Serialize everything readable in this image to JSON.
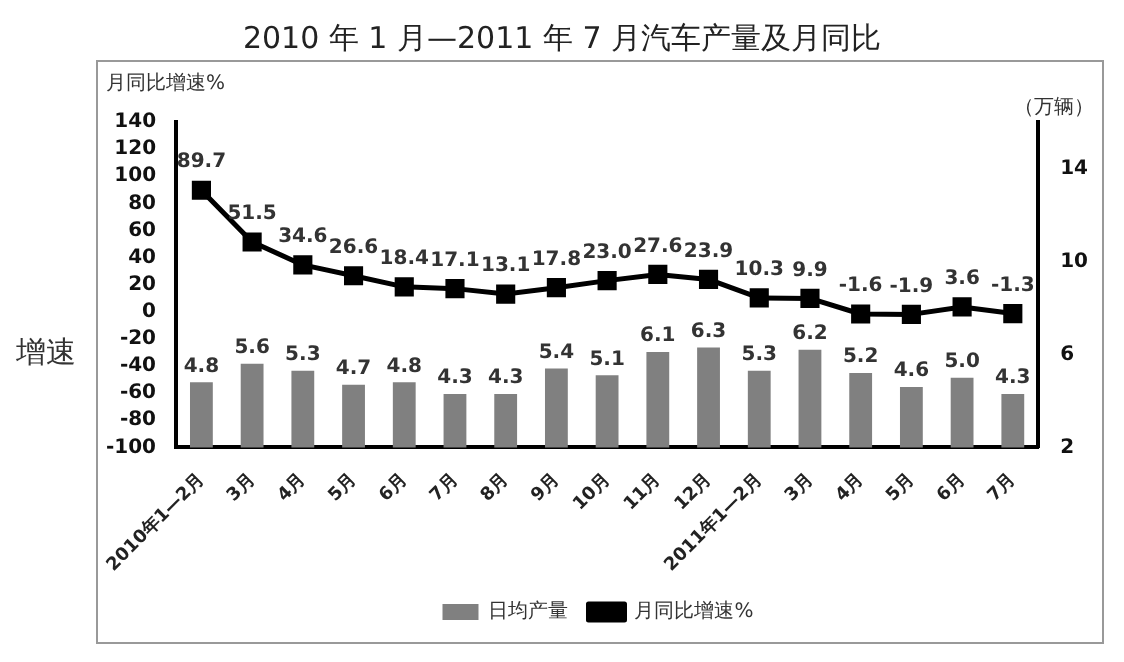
{
  "chart_data": {
    "type": "bar",
    "title": "2010 年 1 月—2011 年 7 月汽车产量及月同比",
    "ylabel": "月同比增速%",
    "y2label": "（万辆）",
    "annotations": [
      "增速"
    ],
    "categories": [
      "2010年1—2月",
      "3月",
      "4月",
      "5月",
      "6月",
      "7月",
      "8月",
      "9月",
      "10月",
      "11月",
      "12月",
      "2011年1—2月",
      "3月",
      "4月",
      "5月",
      "6月",
      "7月"
    ],
    "series": [
      {
        "name": "日均产量",
        "axis": "y2",
        "color": "#808080",
        "values": [
          4.8,
          5.6,
          5.3,
          4.7,
          4.8,
          4.3,
          4.3,
          5.4,
          5.1,
          6.1,
          6.3,
          5.3,
          6.2,
          5.2,
          4.6,
          5.0,
          4.3
        ],
        "value_labels": [
          "4.8",
          "5.6",
          "5.3",
          "4.7",
          "4.8",
          "4.3",
          "4.3",
          "5.4",
          "5.1",
          "6.1",
          "6.3",
          "5.3",
          "6.2",
          "5.2",
          "4.6",
          "5.0",
          "4.3"
        ]
      },
      {
        "name": "月同比增速%",
        "type": "line",
        "axis": "y",
        "color": "#000000",
        "marker": "square",
        "values": [
          89.7,
          51.5,
          34.6,
          26.6,
          18.4,
          17.1,
          13.1,
          17.8,
          23.0,
          27.6,
          23.9,
          10.3,
          9.9,
          -1.6,
          -1.9,
          3.6,
          -1.3
        ],
        "value_labels": [
          "89.7",
          "51.5",
          "34.6",
          "26.6",
          "18.4",
          "17.1",
          "13.1",
          "17.8",
          "23.0",
          "27.6",
          "23.9",
          "10.3",
          "9.9",
          "-1.6",
          "-1.9",
          "3.6",
          "-1.3"
        ]
      }
    ],
    "ylim": [
      -100,
      140
    ],
    "yticks": [
      -100,
      -80,
      -60,
      -40,
      -20,
      0,
      20,
      40,
      60,
      80,
      100,
      120,
      140
    ],
    "y2lim": [
      2,
      16
    ],
    "y2ticks": [
      2,
      6,
      10,
      14
    ],
    "grid": false,
    "legend": "bottom"
  }
}
